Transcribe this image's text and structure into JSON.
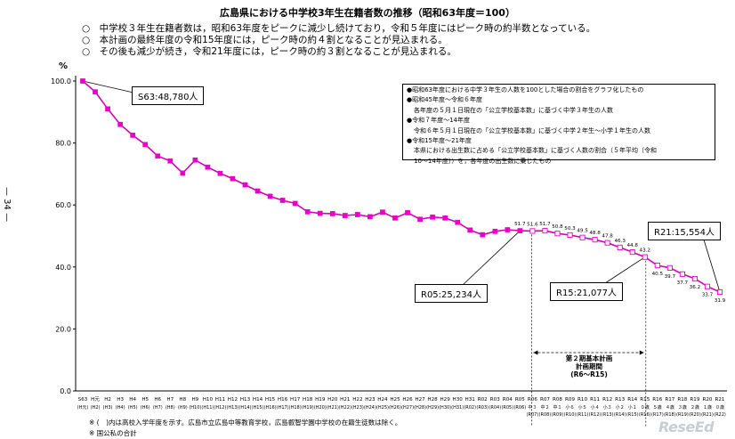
{
  "title": "広島県における中学校3年生在籍者数の推移（昭和63年度＝100）",
  "bullets": [
    "○　中学校３年生在籍者数は，昭和63年度をピークに減少し続けており，令和５年度にはピーク時の約半数となっている。",
    "○　本計画の最終年度の令和15年度には，ピーク時の約４割となることが見込まれる。",
    "○　その後も減少が続き，令和21年度には，ピーク時の約３割となることが見込まれる。"
  ],
  "page_number": "— 34 —",
  "notes": [
    "●昭和63年度における中学３年生の人数を100とした場合の割合をグラフ化したもの",
    "●昭和45年度～令和６年度",
    "各年度の５月１日現在の「公立学校基本数」に基づく中学３年生の人数",
    "●令和７年度～14年度",
    "令和６年５月１日現在の「公立学校基本数」に基づく中学２年生～小学１年生の人数",
    "●令和15年度～21年度",
    "本県における出生数に占める「公立学校基本数」に基づく人数の割合（５年平均〔令和",
    "10～14年度〕）を，各年度の出生数に乗じたもの"
  ],
  "callouts": {
    "s63": "S63:48,780人",
    "r05": "R05:25,234人",
    "r15": "R15:21,077人",
    "r21": "R21:15,554人"
  },
  "period_label": [
    "第２期基本計画",
    "計画期間",
    "(R6～R15)"
  ],
  "footnotes": [
    "※ (　)内は高校入学年度を示す。広島市立広島中等教育学校，広島叡智学園中学校の在籍生徒数は除く。",
    "※ 国公私の合計"
  ],
  "brand": "ReseEd",
  "colors": {
    "series": "#e800c8",
    "line": "#d400b4",
    "projected_fill": "#ffffff"
  },
  "chart_data": {
    "type": "line",
    "ylabel": "%",
    "ylim": [
      0,
      100
    ],
    "yticks": [
      "0.0",
      "20.0",
      "40.0",
      "60.0",
      "80.0",
      "100.0"
    ],
    "grid": false,
    "categories": [
      "S63",
      "H元",
      "H2",
      "H3",
      "H4",
      "H5",
      "H6",
      "H7",
      "H8",
      "H9",
      "H10",
      "H11",
      "H12",
      "H13",
      "H14",
      "H15",
      "H16",
      "H17",
      "H18",
      "H19",
      "H20",
      "H21",
      "H22",
      "H23",
      "H24",
      "H25",
      "H26",
      "H27",
      "H28",
      "H29",
      "H30",
      "H31",
      "R02",
      "R03",
      "R04",
      "R05",
      "R06",
      "R07",
      "R08",
      "R09",
      "R10",
      "R11",
      "R12",
      "R13",
      "R14",
      "R15",
      "R16",
      "R17",
      "R18",
      "R19",
      "R20",
      "R21"
    ],
    "sub_labels": [
      "(H元)",
      "(H2)",
      "(H3)",
      "(H4)",
      "(H5)",
      "(H6)",
      "(H7)",
      "(H8)",
      "(H9)",
      "(H10)",
      "(H11)",
      "(H12)",
      "(H13)",
      "(H14)",
      "(H15)",
      "(H16)",
      "(H17)",
      "(H18)",
      "(H19)",
      "(H20)",
      "(H21)",
      "(H22)",
      "(H23)",
      "(H24)",
      "(H25)",
      "(H26)",
      "(H27)",
      "(H28)",
      "(H29)",
      "(H30)",
      "(H31)",
      "(R02)",
      "(R03)",
      "(R04)",
      "(R05)",
      "(R06)",
      "中３",
      "中２",
      "中１",
      "小６",
      "小５",
      "小４",
      "小３",
      "小２",
      "小１",
      "０歳",
      "５歳",
      "４歳",
      "３歳",
      "２歳",
      "１歳",
      "０歳"
    ],
    "sub_labels2": [
      "",
      "",
      "",
      "",
      "",
      "",
      "",
      "",
      "",
      "",
      "",
      "",
      "",
      "",
      "",
      "",
      "",
      "",
      "",
      "",
      "",
      "",
      "",
      "",
      "",
      "",
      "",
      "",
      "",
      "",
      "",
      "",
      "",
      "",
      "",
      "",
      "(R07)",
      "(R08)",
      "(R09)",
      "(R10)",
      "(R11)",
      "(R12)",
      "(R13)",
      "(R14)",
      "(R15)",
      "(R16)",
      "(R17)",
      "(R18)",
      "(R19)",
      "(R20)",
      "(R21)",
      "(R22)"
    ],
    "values": [
      100,
      96.5,
      91,
      86,
      82.5,
      79.5,
      75.8,
      74.2,
      70.3,
      74.5,
      72.2,
      70.2,
      68.5,
      66.5,
      64.5,
      62.8,
      61.5,
      60.5,
      57.8,
      57.3,
      57.2,
      56.6,
      56.9,
      56.2,
      57.7,
      55.8,
      57.5,
      55.4,
      56.1,
      55.8,
      54.4,
      51.9,
      50.4,
      51.5,
      52.0,
      51.7,
      51.6,
      51.7,
      50.8,
      50.3,
      49.5,
      48.8,
      47.8,
      46.3,
      44.8,
      43.2,
      40.5,
      39.7,
      37.7,
      36.2,
      33.7,
      31.9
    ],
    "projected_from_index": 36,
    "data_labels": {
      "35": "51.7",
      "36": "51.6",
      "37": "51.7",
      "38": "50.8",
      "39": "50.3",
      "40": "49.5",
      "41": "48.8",
      "42": "47.8",
      "43": "46.3",
      "44": "44.8",
      "45": "43.2",
      "46": "40.5",
      "47": "39.7",
      "48": "37.7",
      "49": "36.2",
      "50": "33.7",
      "51": "31.9"
    }
  }
}
